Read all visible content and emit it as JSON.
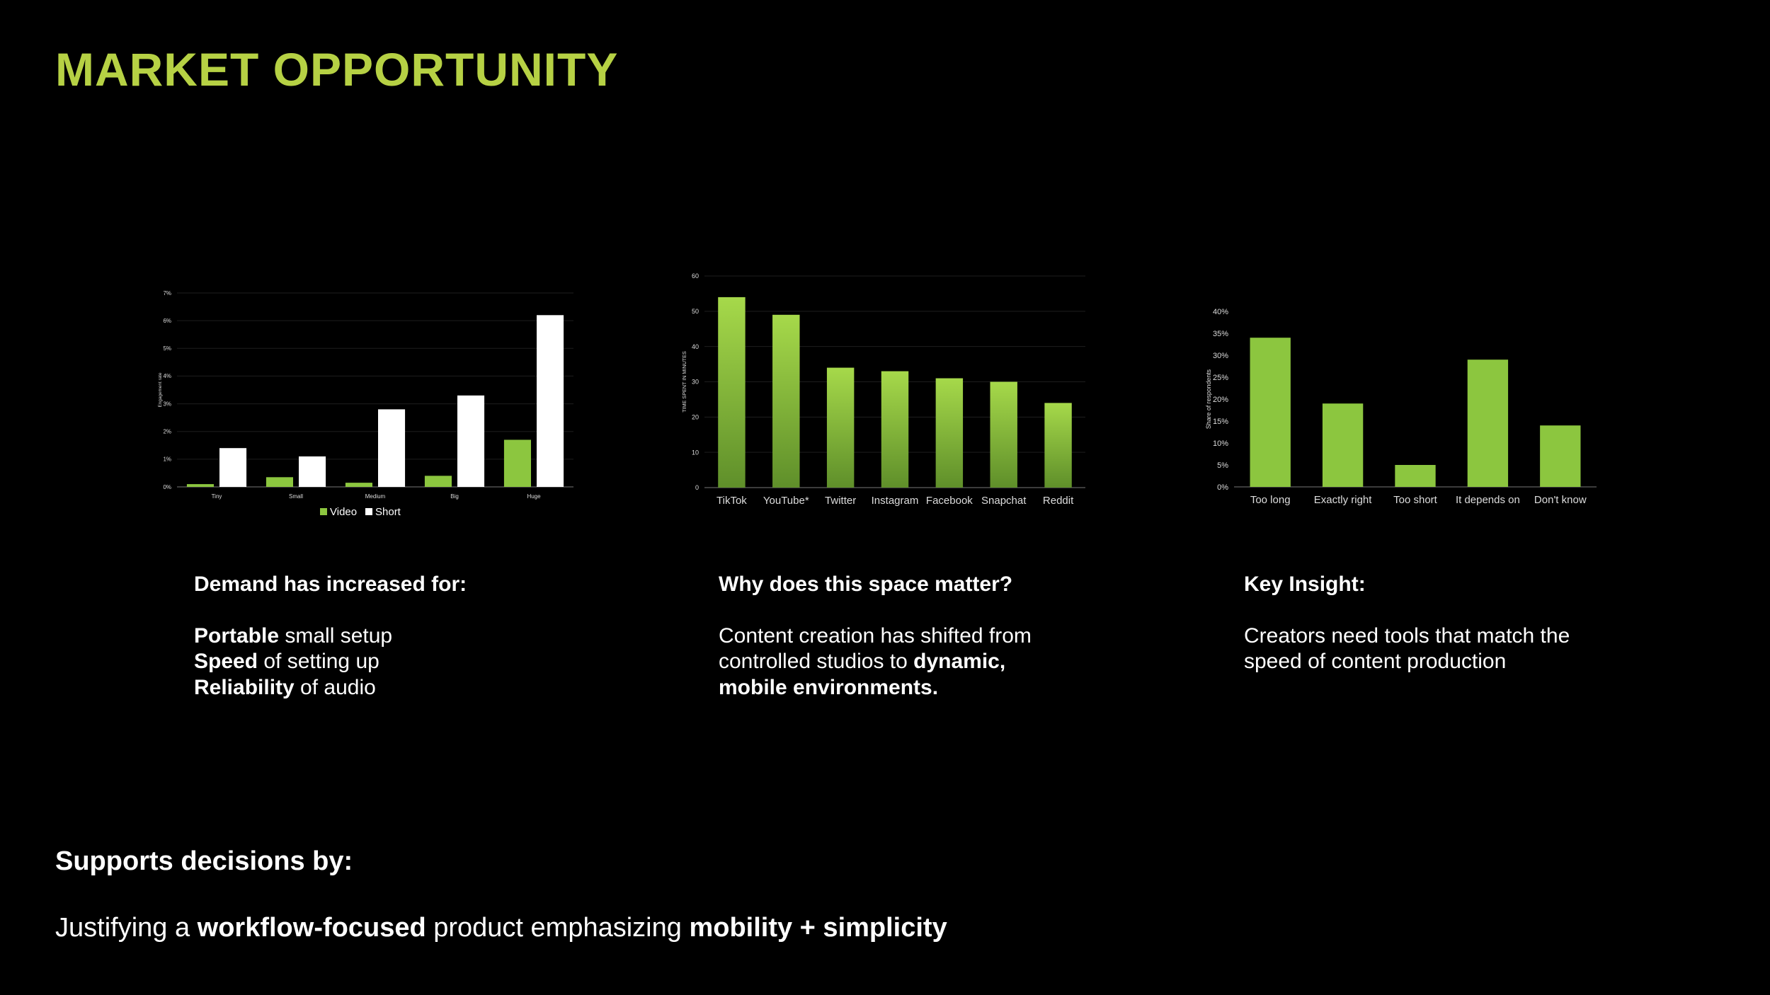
{
  "page": {
    "title": "MARKET OPPORTUNITY"
  },
  "colors": {
    "accent": "#b6d144",
    "bar_green": "#8cc63f",
    "bar_white": "#ffffff",
    "background": "#000000"
  },
  "chart_data": [
    {
      "type": "bar",
      "categories": [
        "Tiny",
        "Small",
        "Medium",
        "Big",
        "Huge"
      ],
      "series": [
        {
          "name": "Video",
          "values": [
            0.1,
            0.35,
            0.15,
            0.4,
            1.7
          ]
        },
        {
          "name": "Short",
          "values": [
            1.4,
            1.1,
            2.8,
            3.3,
            6.2
          ]
        }
      ],
      "ylabel": "Engagement rate",
      "ylim": [
        0,
        7
      ],
      "yticks": [
        "0%",
        "1%",
        "2%",
        "3%",
        "4%",
        "5%",
        "6%",
        "7%"
      ],
      "legend": "bottom"
    },
    {
      "type": "bar",
      "categories": [
        "TikTok",
        "YouTube*",
        "Twitter",
        "Instagram",
        "Facebook",
        "Snapchat",
        "Reddit"
      ],
      "values": [
        54,
        49,
        34,
        33,
        31,
        30,
        24
      ],
      "ylabel": "TIME SPENT IN MINUTES",
      "ylim": [
        0,
        60
      ],
      "yticks": [
        "0",
        "10",
        "20",
        "30",
        "40",
        "50",
        "60"
      ]
    },
    {
      "type": "bar",
      "categories": [
        "Too long",
        "Exactly right",
        "Too short",
        "It depends on",
        "Don't know"
      ],
      "values": [
        34,
        19,
        5,
        29,
        14
      ],
      "ylabel": "Share of respondents",
      "ylim": [
        0,
        40
      ],
      "yticks": [
        "0%",
        "5%",
        "10%",
        "15%",
        "20%",
        "25%",
        "30%",
        "35%",
        "40%"
      ]
    }
  ],
  "col1": {
    "heading": "Demand has increased for:",
    "l1b": "Portable",
    "l1": " small setup",
    "l2b": "Speed",
    "l2": " of setting up",
    "l3b": "Reliability",
    "l3": " of audio"
  },
  "col2": {
    "heading": "Why does this space matter?",
    "t1": "Content creation has shifted from",
    "t2": "controlled studios to ",
    "t2b": "dynamic,",
    "t3b": "mobile environments."
  },
  "col3": {
    "heading": "Key Insight:",
    "t1": "Creators need tools that match the",
    "t2": "speed of content production"
  },
  "footer": {
    "supports": "Supports decisions by:",
    "j1": "Justifying a ",
    "j2b": "workflow-focused",
    "j3": " product emphasizing ",
    "j4b": "mobility + simplicity"
  }
}
